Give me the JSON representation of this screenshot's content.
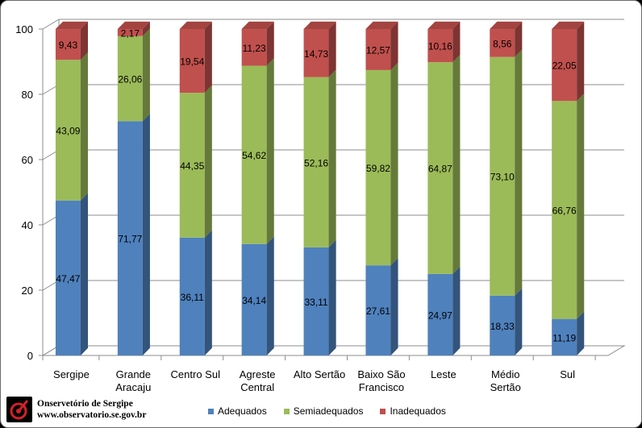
{
  "chart_data": {
    "type": "bar",
    "stacked": true,
    "three_d": true,
    "categories": [
      [
        "Sergipe"
      ],
      [
        "Grande",
        "Aracaju"
      ],
      [
        "Centro Sul"
      ],
      [
        "Agreste",
        "Central"
      ],
      [
        "Alto Sertão"
      ],
      [
        "Baixo São",
        "Francisco"
      ],
      [
        "Leste"
      ],
      [
        "Médio",
        "Sertão"
      ],
      [
        "Sul"
      ]
    ],
    "series": [
      {
        "name": "Adequados",
        "color": "#4f81bd",
        "values": [
          47.47,
          71.77,
          36.11,
          34.14,
          33.11,
          27.61,
          24.97,
          18.33,
          11.19
        ],
        "labels": [
          "47,47",
          "71,77",
          "36,11",
          "34,14",
          "33,11",
          "27,61",
          "24,97",
          "18,33",
          "11,19"
        ]
      },
      {
        "name": "Semiadequados",
        "color": "#9bbb59",
        "values": [
          43.09,
          26.06,
          44.35,
          54.62,
          52.16,
          59.82,
          64.87,
          73.1,
          66.76
        ],
        "labels": [
          "43,09",
          "26,06",
          "44,35",
          "54,62",
          "52,16",
          "59,82",
          "64,87",
          "73,10",
          "66,76"
        ]
      },
      {
        "name": "Inadequados",
        "color": "#c0504d",
        "values": [
          9.43,
          2.17,
          19.54,
          11.23,
          14.73,
          12.57,
          10.16,
          8.56,
          22.05
        ],
        "labels": [
          "9,43",
          "2,17",
          "19,54",
          "11,23",
          "14,73",
          "12,57",
          "10,16",
          "8,56",
          "22,05"
        ]
      }
    ],
    "y_ticks": [
      "0",
      "20",
      "40",
      "60",
      "80",
      "100"
    ],
    "ylim": [
      0,
      100
    ],
    "grid": true,
    "legend_position": "bottom",
    "title": "",
    "xlabel": "",
    "ylabel": ""
  },
  "legend": {
    "items": [
      {
        "label": "Adequados",
        "color": "#4f81bd"
      },
      {
        "label": "Semiadequados",
        "color": "#9bbb59"
      },
      {
        "label": "Inadequados",
        "color": "#c0504d"
      }
    ]
  },
  "logo": {
    "title": "Onservetório de Sergipe",
    "url": "www.observatorio.se.gov.br",
    "icon": "observatory-logo-icon"
  }
}
